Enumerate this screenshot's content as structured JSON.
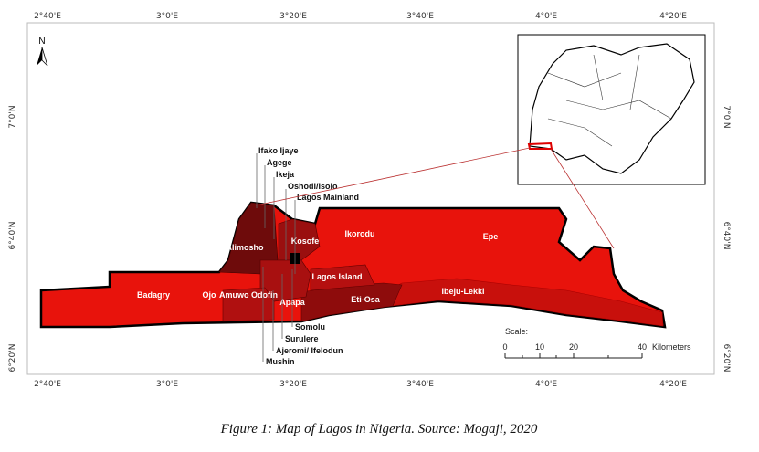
{
  "map": {
    "north": "N",
    "lon_ticks": [
      "2°40'E",
      "3°0'E",
      "3°20'E",
      "3°40'E",
      "4°0'E",
      "4°20'E"
    ],
    "lat_ticks": [
      "7°0'N",
      "6°40'N",
      "6°20'N"
    ],
    "areas": [
      "Alimosho",
      "Kosofe",
      "Ikorodu",
      "Epe",
      "Lagos Island",
      "Badagry",
      "Ojo",
      "Amuwo Odofin",
      "Apapa",
      "Eti-Osa",
      "Ibeju-Lekki"
    ],
    "callouts_top": [
      "Ifako Ijaye",
      "Agege",
      "Ikeja",
      "Oshodi/Isolo",
      "Lagos Mainland"
    ],
    "callouts_bottom": [
      "Somolu",
      "Surulere",
      "Ajeromi/ Ifelodun",
      "Mushin"
    ],
    "scale": {
      "title": "Scale:",
      "labels": [
        "0",
        "10",
        "20",
        "40"
      ],
      "unit": "Kilometers"
    }
  },
  "caption": "Figure 1: Map of Lagos in Nigeria. Source: Mogaji, 2020"
}
